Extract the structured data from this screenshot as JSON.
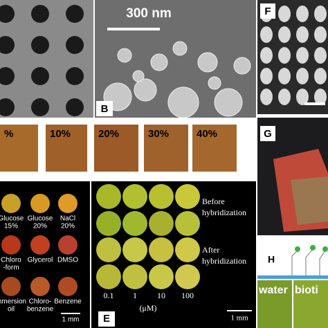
{
  "panels": {
    "b": {
      "scale": "300 nm",
      "label": "B"
    },
    "f": {
      "label": "F"
    },
    "c": {
      "labels": [
        "%",
        "10%",
        "20%",
        "30%",
        "40%"
      ]
    },
    "g": {
      "label": "G"
    },
    "d": {
      "labels": [
        [
          "Glucose",
          "15%"
        ],
        [
          "Glucose",
          "20%"
        ],
        [
          "NaCl",
          "20%"
        ],
        [
          "Chloro",
          "-form"
        ],
        [
          "Glycerol"
        ],
        [
          "DMSO"
        ],
        [
          "mmersion",
          "oil"
        ],
        [
          "Chloro-",
          "benzene"
        ],
        [
          "Benzene"
        ]
      ],
      "scale": "1 mm"
    },
    "e": {
      "label": "E",
      "conc": [
        "0.1",
        "1",
        "10",
        "100"
      ],
      "unit": "(μM)",
      "before": [
        "Before",
        "hybridization"
      ],
      "after": [
        "After",
        "hybridization"
      ],
      "scale": "1 mm"
    },
    "h": {
      "label": "H",
      "left": "water",
      "right": "bioti"
    }
  }
}
